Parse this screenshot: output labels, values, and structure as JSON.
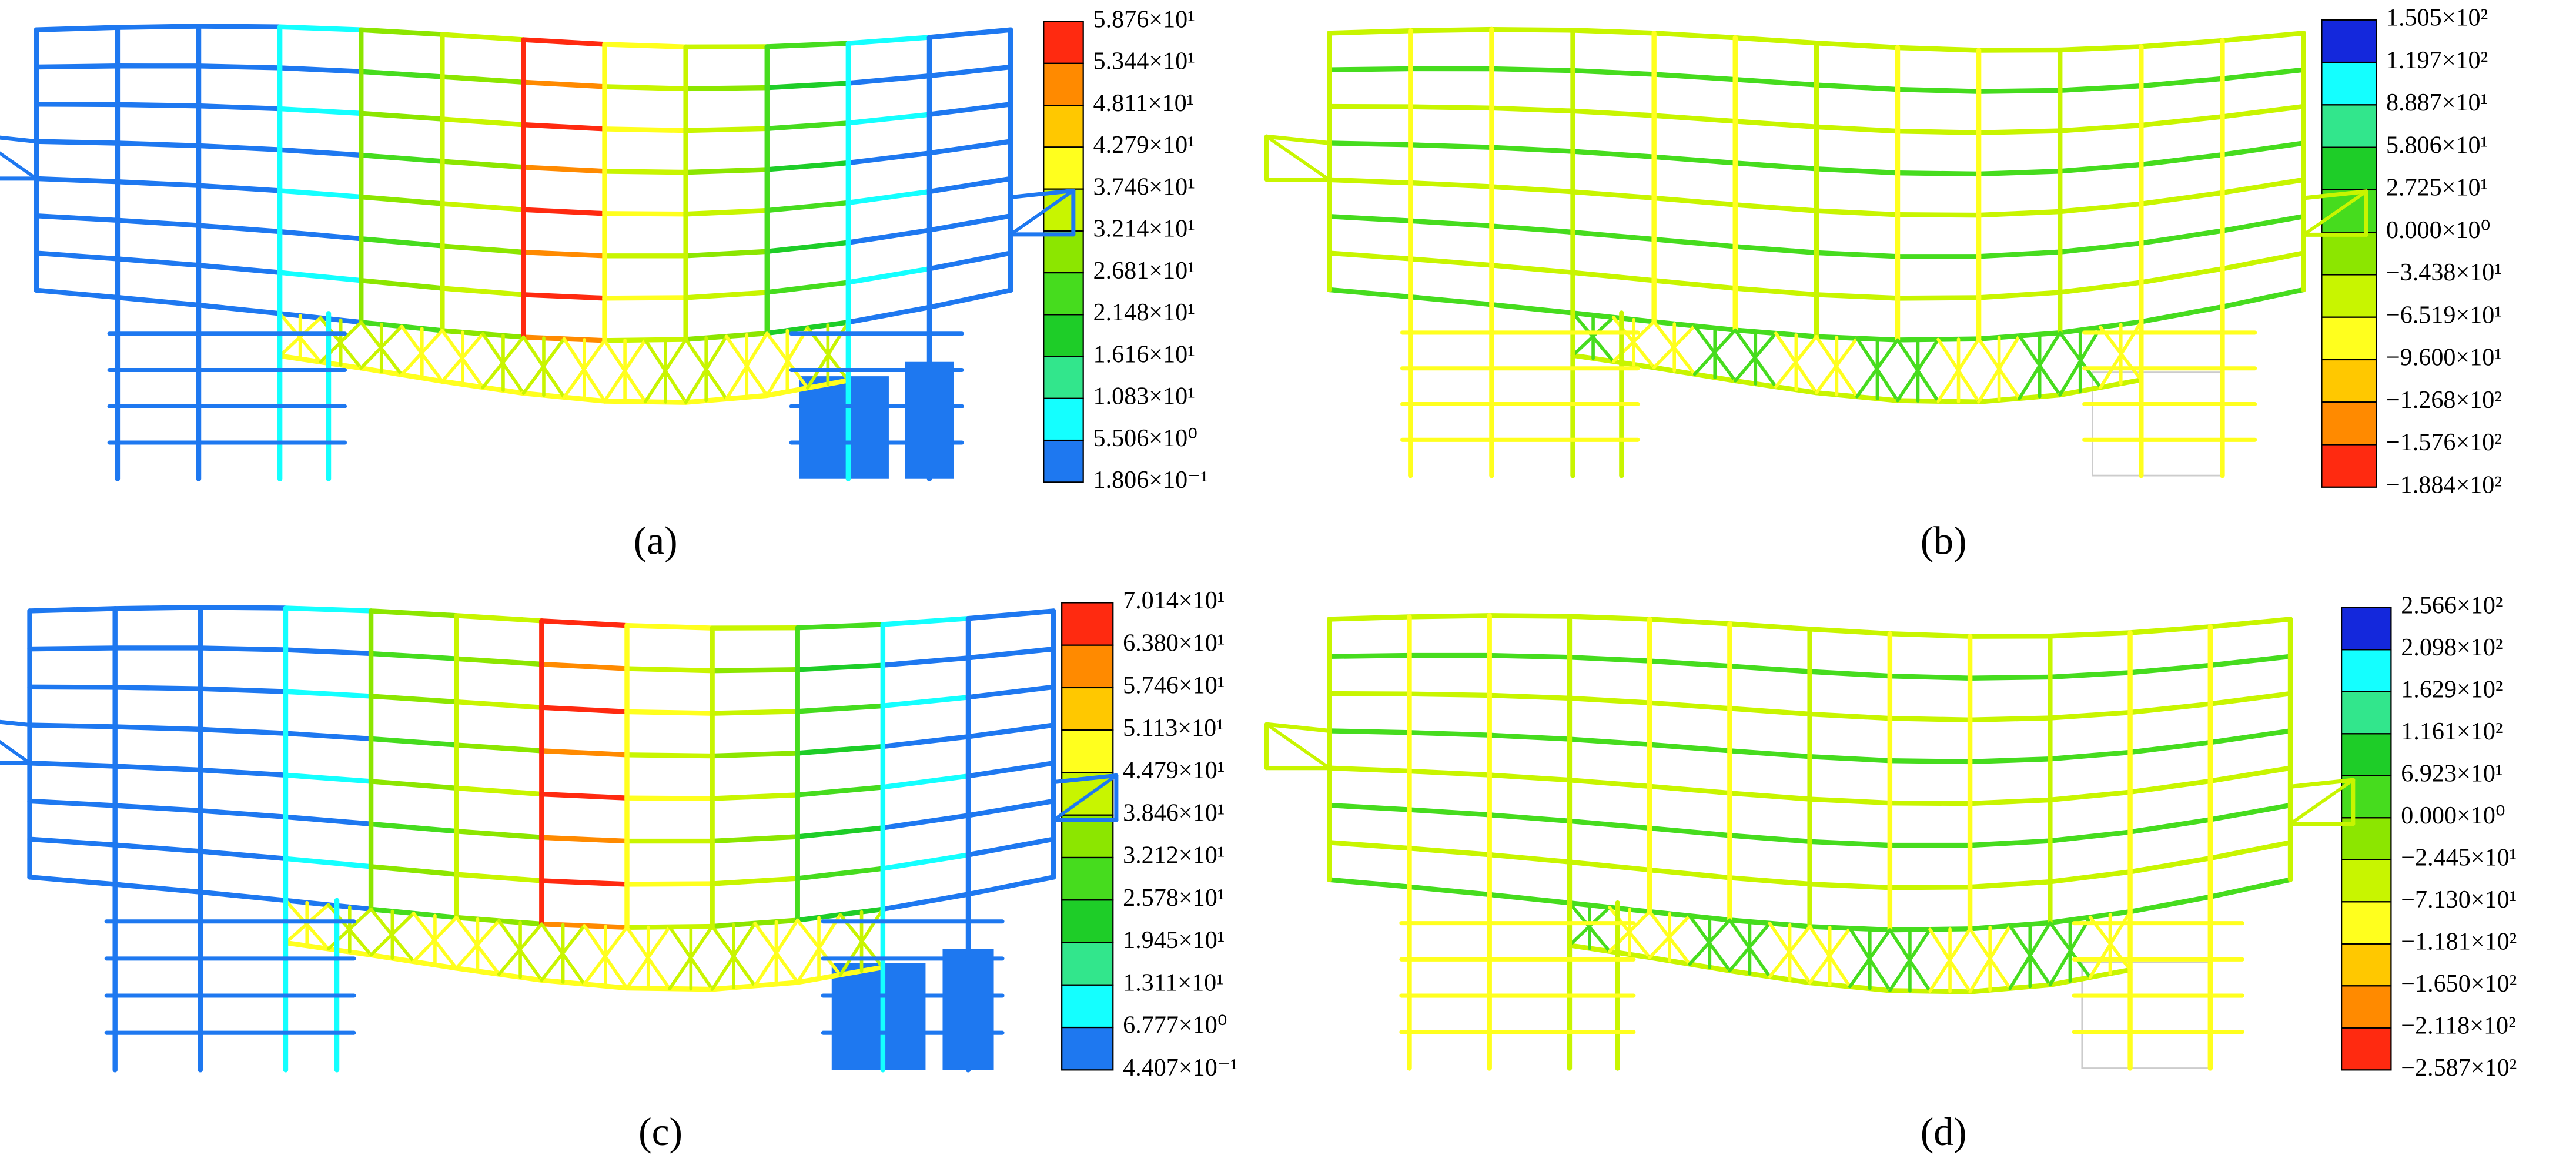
{
  "panels": [
    {
      "label": "(a)",
      "legend": {
        "labels": [
          "5.876×10¹",
          "5.344×10¹",
          "4.811×10¹",
          "4.279×10¹",
          "3.746×10¹",
          "3.214×10¹",
          "2.681×10¹",
          "2.148×10¹",
          "1.616×10¹",
          "1.083×10¹",
          "5.506×10⁰",
          "1.806×10⁻¹"
        ],
        "colors": [
          "#ff2a10",
          "#ff8a00",
          "#ffc800",
          "#ffff1e",
          "#c8f500",
          "#8ce600",
          "#46dc1e",
          "#1ecd28",
          "#32e68c",
          "#14ffff",
          "#1e78f0"
        ]
      }
    },
    {
      "label": "(b)",
      "legend": {
        "labels": [
          "1.505×10²",
          "1.197×10²",
          "8.887×10¹",
          "5.806×10¹",
          "2.725×10¹",
          "0.000×10⁰",
          "−3.438×10¹",
          "−6.519×10¹",
          "−9.600×10¹",
          "−1.268×10²",
          "−1.576×10²",
          "−1.884×10²"
        ],
        "colors": [
          "#1428dc",
          "#14ffff",
          "#32e68c",
          "#1ecd28",
          "#46dc1e",
          "#8ce600",
          "#c8f500",
          "#ffff1e",
          "#ffc800",
          "#ff8a00",
          "#ff2a10"
        ]
      }
    },
    {
      "label": "(c)",
      "legend": {
        "labels": [
          "7.014×10¹",
          "6.380×10¹",
          "5.746×10¹",
          "5.113×10¹",
          "4.479×10¹",
          "3.846×10¹",
          "3.212×10¹",
          "2.578×10¹",
          "1.945×10¹",
          "1.311×10¹",
          "6.777×10⁰",
          "4.407×10⁻¹"
        ],
        "colors": [
          "#ff2a10",
          "#ff8a00",
          "#ffc800",
          "#ffff1e",
          "#c8f500",
          "#8ce600",
          "#46dc1e",
          "#1ecd28",
          "#32e68c",
          "#14ffff",
          "#1e78f0"
        ]
      }
    },
    {
      "label": "(d)",
      "legend": {
        "labels": [
          "2.566×10²",
          "2.098×10²",
          "1.629×10²",
          "1.161×10²",
          "6.923×10¹",
          "0.000×10⁰",
          "−2.445×10¹",
          "−7.130×10¹",
          "−1.181×10²",
          "−1.650×10²",
          "−2.118×10²",
          "−2.587×10²"
        ],
        "colors": [
          "#1428dc",
          "#14ffff",
          "#32e68c",
          "#1ecd28",
          "#46dc1e",
          "#8ce600",
          "#c8f500",
          "#ffff1e",
          "#ffc800",
          "#ff8a00",
          "#ff2a10"
        ]
      }
    }
  ]
}
